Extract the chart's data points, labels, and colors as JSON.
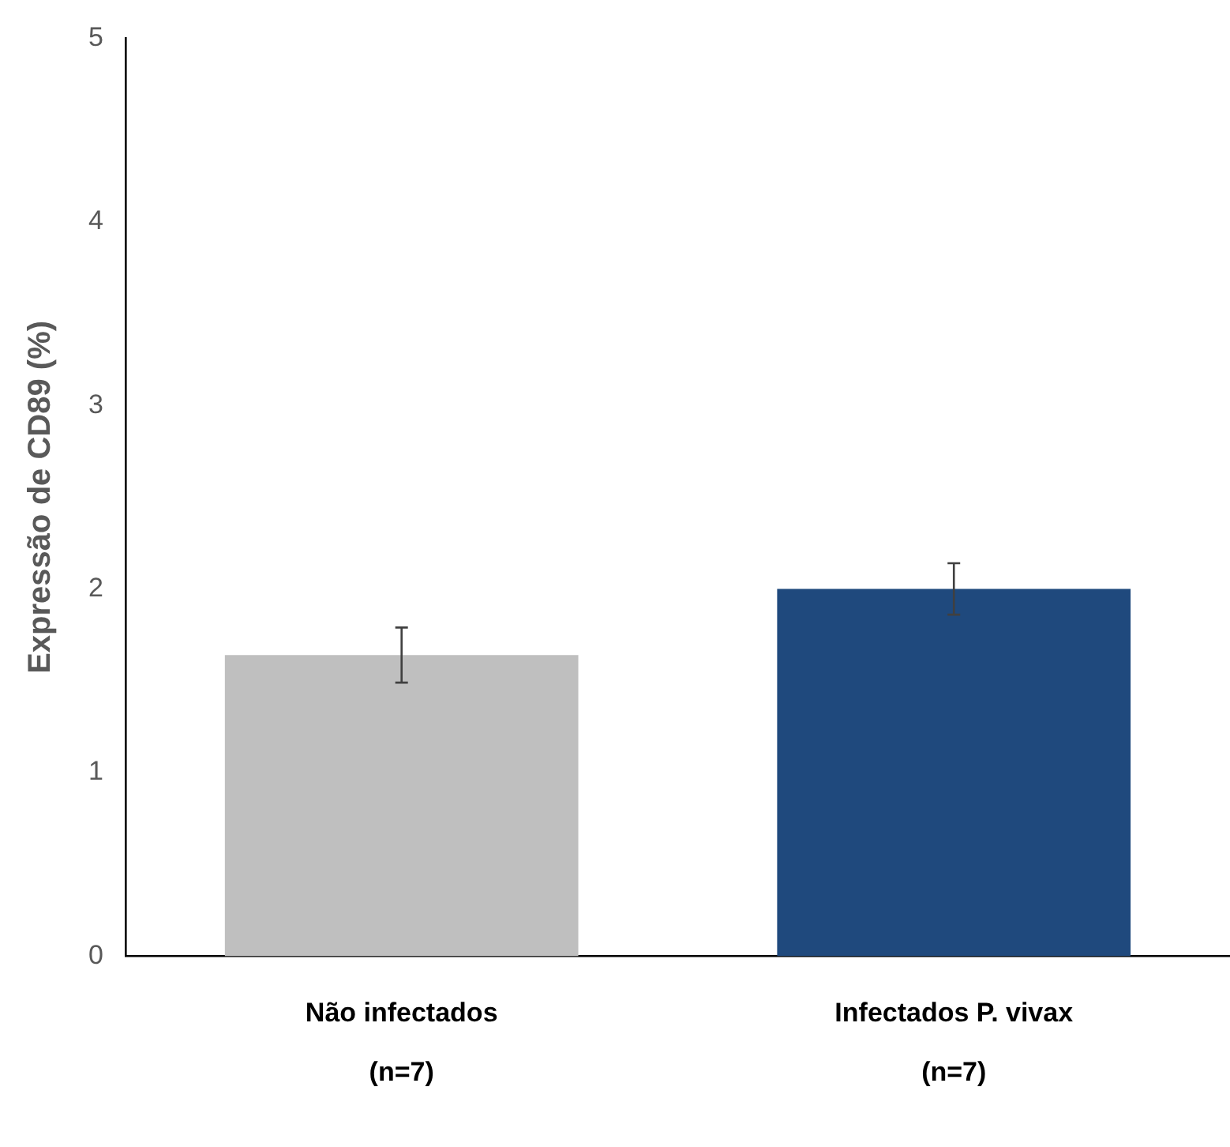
{
  "chart_data": {
    "type": "bar",
    "ylabel": "Expressão de CD89 (%)",
    "categories": [
      "Não infectados\n(n=7)",
      "Infectados P. vivax\n(n=7)"
    ],
    "values": [
      1.64,
      2.0
    ],
    "colors": [
      "#bfbfbf",
      "#1f497d"
    ],
    "errors": [
      0.15,
      0.14
    ],
    "ylim": [
      0,
      5
    ],
    "yticks": [
      0,
      1,
      2,
      3,
      4,
      5
    ],
    "grid": false,
    "legend": false
  }
}
